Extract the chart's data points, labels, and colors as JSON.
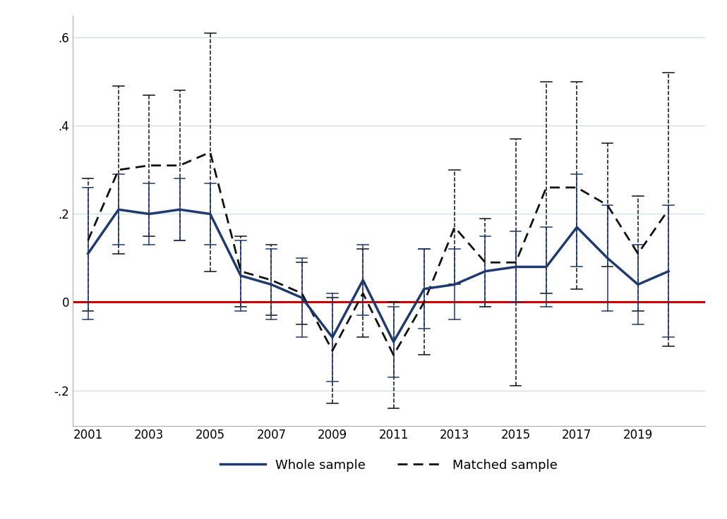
{
  "years": [
    2001,
    2002,
    2003,
    2004,
    2005,
    2006,
    2007,
    2008,
    2009,
    2010,
    2011,
    2012,
    2013,
    2014,
    2015,
    2016,
    2017,
    2018,
    2019,
    2020
  ],
  "whole_coef": [
    0.11,
    0.21,
    0.2,
    0.21,
    0.2,
    0.06,
    0.04,
    0.01,
    -0.08,
    0.05,
    -0.09,
    0.03,
    0.04,
    0.07,
    0.08,
    0.08,
    0.17,
    0.1,
    0.04,
    0.07
  ],
  "whole_upper": [
    0.26,
    0.29,
    0.27,
    0.28,
    0.27,
    0.14,
    0.12,
    0.1,
    0.02,
    0.13,
    -0.01,
    0.12,
    0.12,
    0.15,
    0.16,
    0.17,
    0.29,
    0.22,
    0.13,
    0.22
  ],
  "whole_lower": [
    -0.04,
    0.13,
    0.13,
    0.14,
    0.13,
    -0.02,
    -0.04,
    -0.08,
    -0.18,
    -0.03,
    -0.17,
    -0.06,
    -0.04,
    -0.01,
    0.0,
    -0.01,
    0.08,
    -0.02,
    -0.05,
    -0.08
  ],
  "matched_coef": [
    0.14,
    0.3,
    0.31,
    0.31,
    0.34,
    0.07,
    0.05,
    0.02,
    -0.11,
    0.02,
    -0.12,
    0.0,
    0.17,
    0.09,
    0.09,
    0.26,
    0.26,
    0.22,
    0.11,
    0.21
  ],
  "matched_upper": [
    0.28,
    0.49,
    0.47,
    0.48,
    0.61,
    0.15,
    0.13,
    0.09,
    0.01,
    0.12,
    0.0,
    0.12,
    0.3,
    0.19,
    0.37,
    0.5,
    0.5,
    0.36,
    0.24,
    0.52
  ],
  "matched_lower": [
    -0.02,
    0.11,
    0.15,
    0.14,
    0.07,
    -0.01,
    -0.03,
    -0.05,
    -0.23,
    -0.08,
    -0.24,
    -0.12,
    0.04,
    -0.01,
    -0.19,
    0.02,
    0.03,
    0.08,
    -0.02,
    -0.1
  ],
  "whole_color": "#1f3a6e",
  "matched_color": "#111111",
  "ref_color": "#cc0000",
  "background_color": "#ffffff",
  "grid_color": "#ccdde8",
  "yticks": [
    -0.2,
    0.0,
    0.2,
    0.4,
    0.6
  ],
  "ytick_labels": [
    "-.2",
    "0",
    ".2",
    ".4",
    ".6"
  ],
  "xticks": [
    2001,
    2003,
    2005,
    2007,
    2009,
    2011,
    2013,
    2015,
    2017,
    2019
  ],
  "ylim": [
    -0.28,
    0.65
  ],
  "xlim": [
    2000.5,
    2021.2
  ]
}
